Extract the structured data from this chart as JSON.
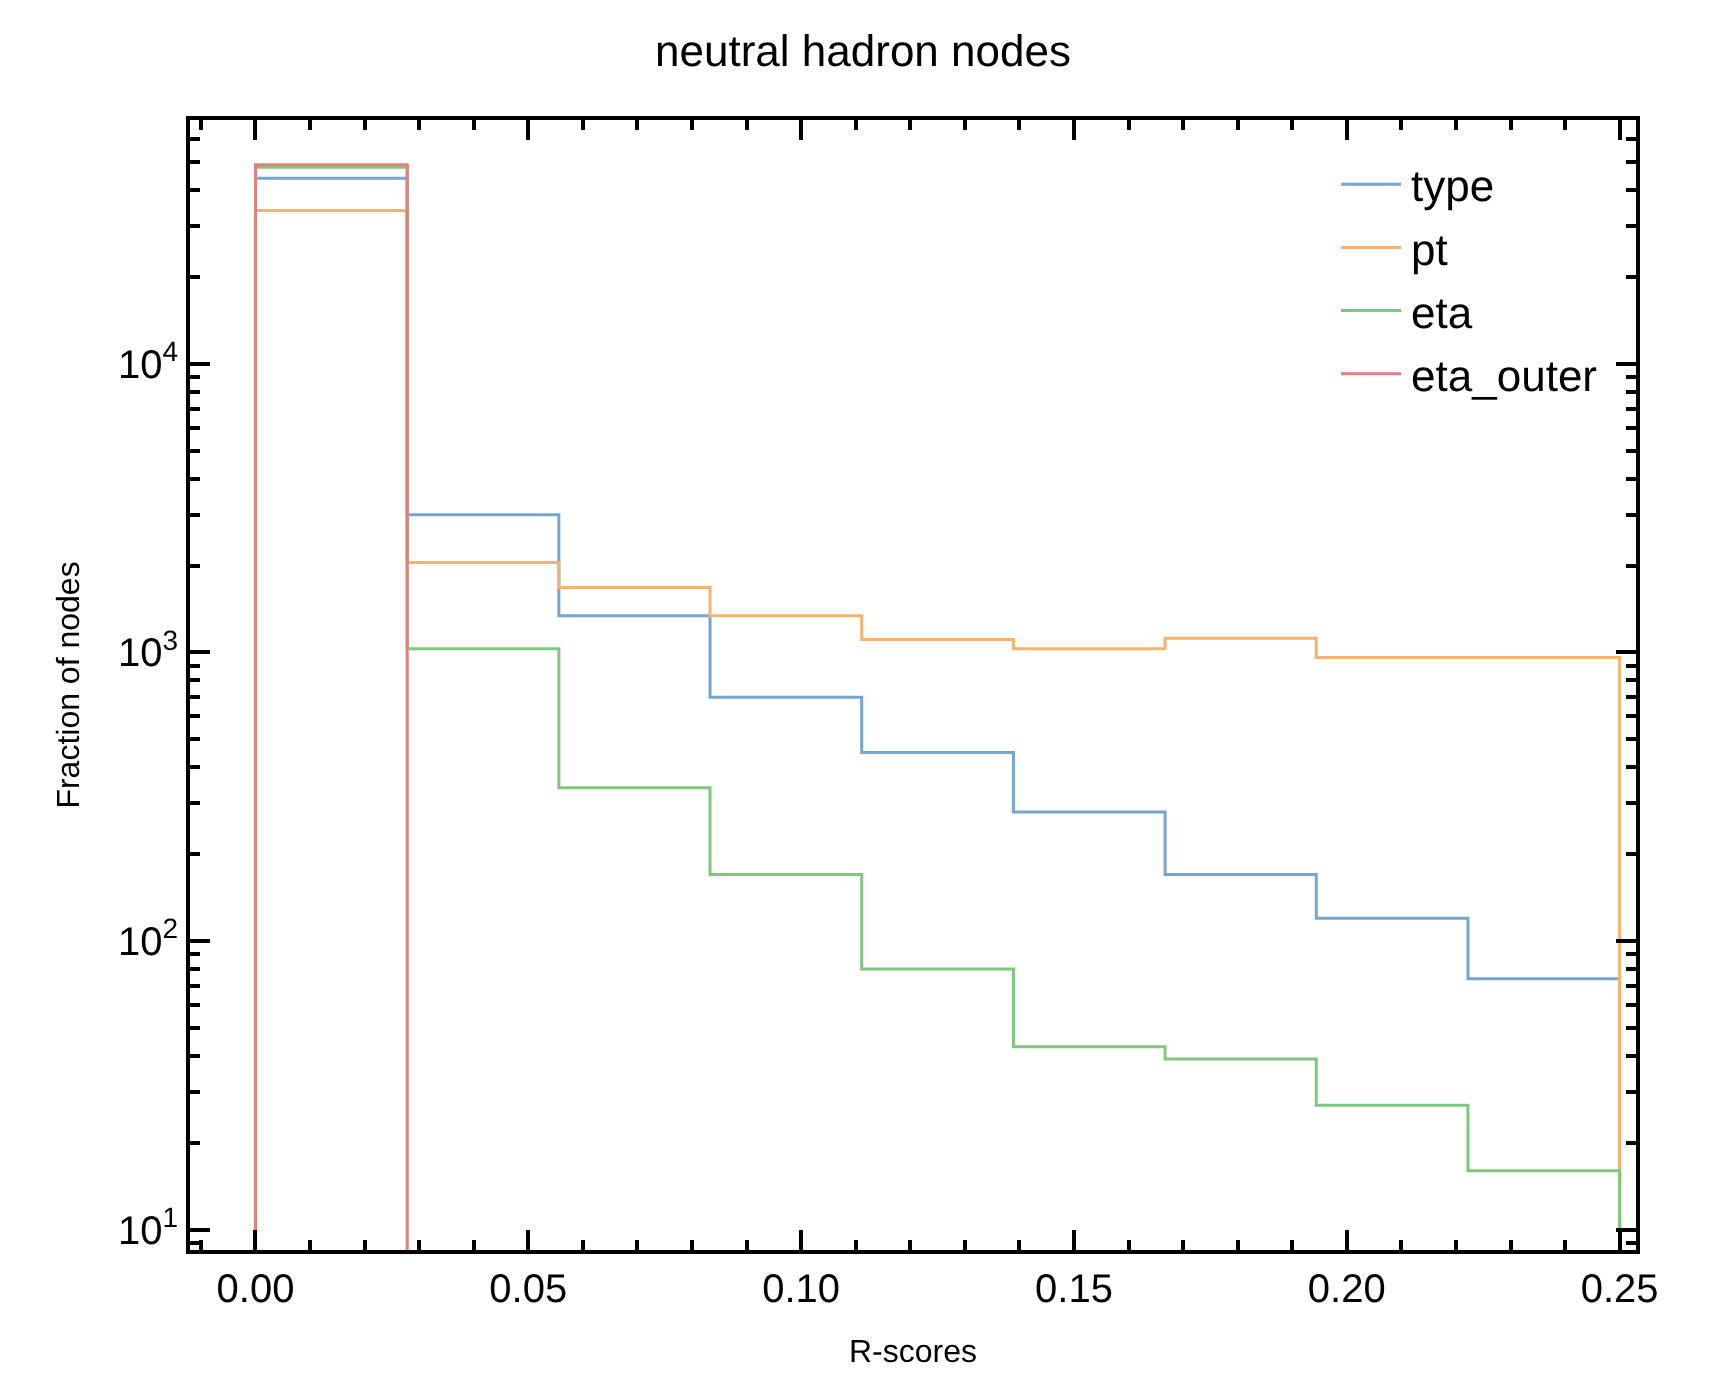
{
  "chart_data": {
    "type": "histogram",
    "title": "neutral hadron nodes",
    "xlabel": "R-scores",
    "ylabel": "Fraction of nodes",
    "bins": [
      0,
      0.0278,
      0.0556,
      0.0833,
      0.1111,
      0.1389,
      0.1667,
      0.1944,
      0.2222,
      0.25
    ],
    "series": [
      {
        "name": "type",
        "color": "#76a5cf",
        "values": [
          44000,
          3000,
          1340,
          700,
          450,
          280,
          170,
          120,
          74
        ]
      },
      {
        "name": "pt",
        "color": "#f5b36e",
        "values": [
          34000,
          2050,
          1680,
          1340,
          1110,
          1030,
          1120,
          960,
          960
        ]
      },
      {
        "name": "eta",
        "color": "#80c680",
        "values": [
          48000,
          1030,
          340,
          170,
          80,
          43,
          39,
          27,
          16
        ]
      },
      {
        "name": "eta_outer",
        "color": "#e08080",
        "bins": [
          0,
          0.0278
        ],
        "values": [
          49000
        ]
      }
    ],
    "log": true,
    "ylim": [
      8.5,
      70000
    ],
    "yticks": [
      {
        "value": 10,
        "label": "10$^{1}$"
      },
      {
        "value": 100,
        "label": "10$^{2}$"
      },
      {
        "value": 1000,
        "label": "10$^{3}$"
      },
      {
        "value": 10000,
        "label": "10$^{4}$"
      }
    ],
    "xlim": [
      -0.012,
      0.253
    ],
    "xticks": [
      {
        "value": 0,
        "label": "0.00"
      },
      {
        "value": 0.05,
        "label": "0.05"
      },
      {
        "value": 0.1,
        "label": "0.10"
      },
      {
        "value": 0.15,
        "label": "0.15"
      },
      {
        "value": 0.2,
        "label": "0.20"
      },
      {
        "value": 0.25,
        "label": "0.25"
      }
    ],
    "legend": "top right"
  }
}
